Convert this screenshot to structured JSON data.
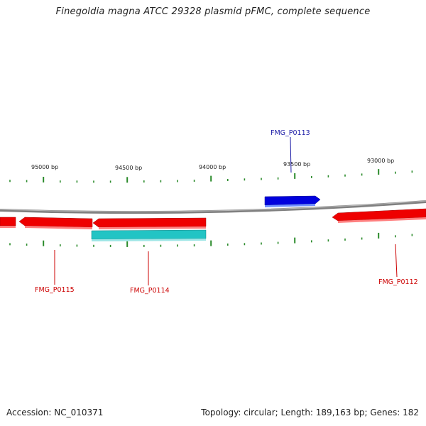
{
  "title": "Finegoldia magna ATCC 29328 plasmid pFMC, complete sequence",
  "footer": {
    "accession": "Accession: NC_010371",
    "summary": "Topology: circular; Length: 189,163 bp; Genes: 182"
  },
  "map": {
    "bp_labels": [
      "95000 bp",
      "94500 bp",
      "94000 bp",
      "93500 bp",
      "93000 bp"
    ],
    "genes": [
      {
        "name": "FMG_P0113",
        "color": "#0000dd",
        "strand": "+",
        "label_color": "#1a1aa6"
      },
      {
        "name": "FMG_P0112",
        "color": "#ee0000",
        "strand": "-",
        "label_color": "#cc0000"
      },
      {
        "name": "FMG_P0114",
        "color": "#ee0000",
        "strand": "-",
        "label_color": "#cc0000"
      },
      {
        "name": "FMG_P0115",
        "color": "#ee0000",
        "strand": "-",
        "label_color": "#cc0000"
      }
    ],
    "unlabeled_features": [
      {
        "color": "#ee0000",
        "kind": "gene"
      },
      {
        "color": "#22c4c4",
        "kind": "cds"
      }
    ],
    "backbone_color": "#808080",
    "tick_color": "#2a8a2a"
  }
}
